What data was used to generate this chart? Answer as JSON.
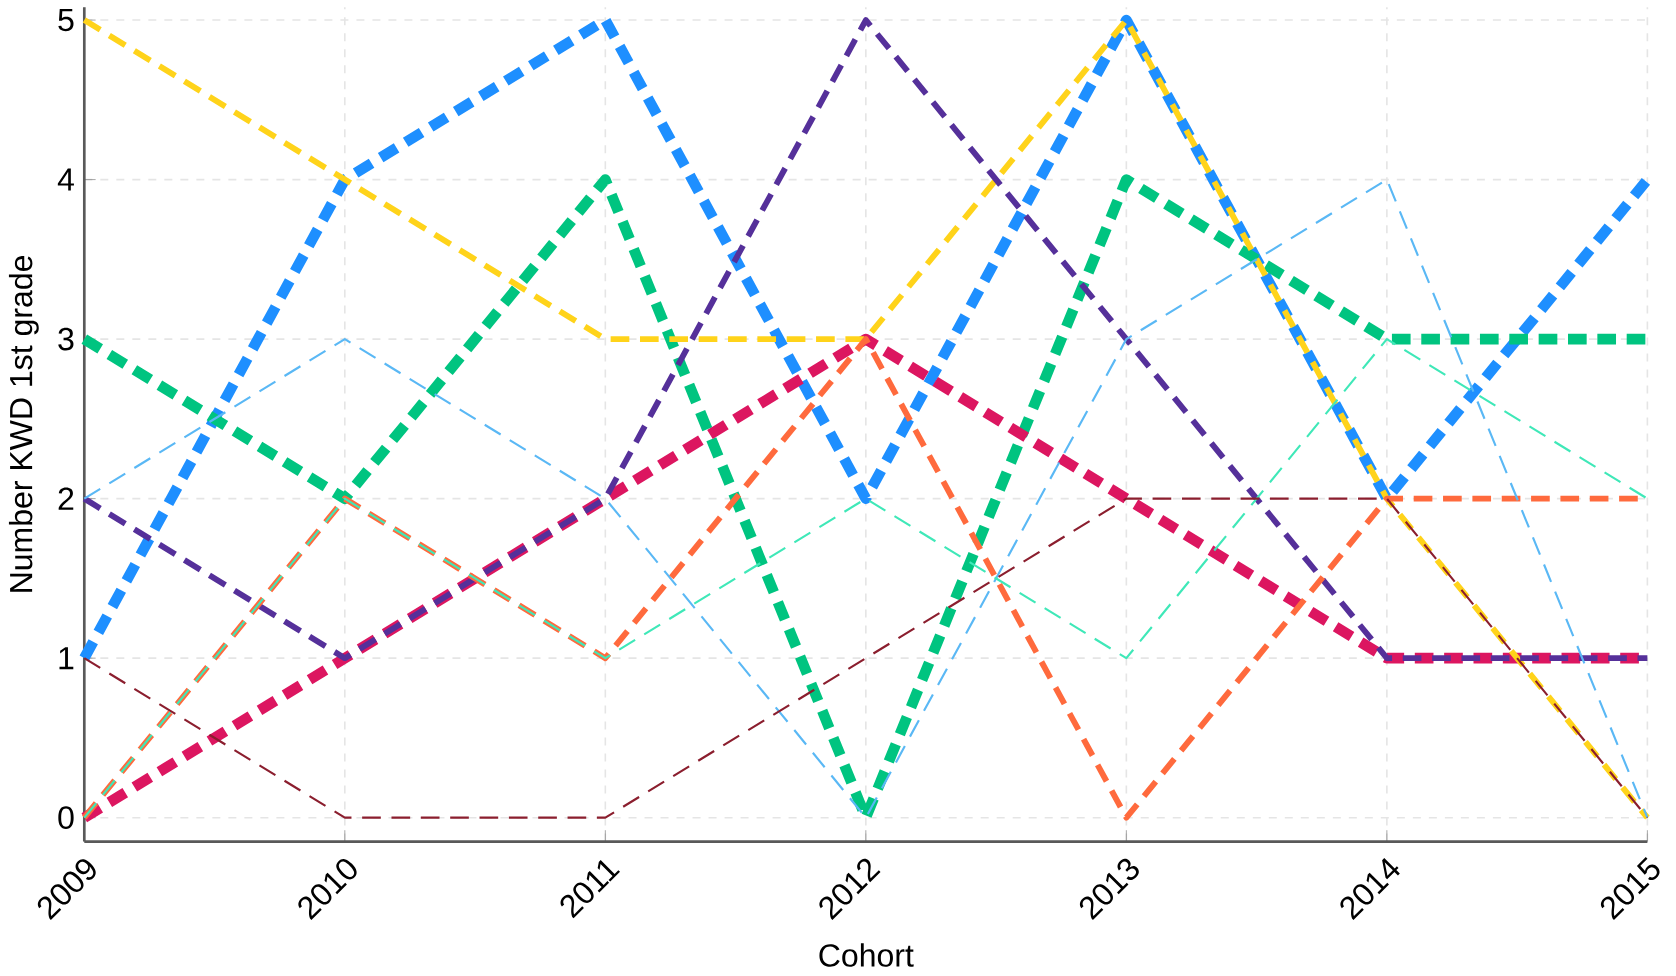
{
  "chart_data": {
    "type": "line",
    "xlabel": "Cohort",
    "ylabel": "Number KWD 1st grade",
    "x": [
      2009,
      2010,
      2011,
      2012,
      2013,
      2014,
      2015
    ],
    "xlim": [
      2009,
      2015
    ],
    "xticks": [
      2009,
      2010,
      2011,
      2012,
      2013,
      2014,
      2015
    ],
    "ylim": [
      -0.15,
      5.08
    ],
    "yticks": [
      0,
      1,
      2,
      3,
      4,
      5
    ],
    "grid": true,
    "line_style": "dashed",
    "marker": "none",
    "series": [
      {
        "color": "#1e8fff",
        "values": [
          1,
          4,
          5,
          2,
          5,
          2,
          4
        ]
      },
      {
        "color": "#00c480",
        "values": [
          3,
          2,
          4,
          0,
          4,
          3,
          3
        ]
      },
      {
        "color": "#dc1660",
        "values": [
          0,
          1,
          2,
          3,
          2,
          1,
          1
        ]
      },
      {
        "color": "#ffd31a",
        "values": [
          5,
          4,
          3,
          3,
          5,
          2,
          0
        ]
      },
      {
        "color": "#55309a",
        "values": [
          2,
          1,
          2,
          5,
          3,
          1,
          1
        ]
      },
      {
        "color": "#ff6a3d",
        "values": [
          0,
          2,
          1,
          3,
          0,
          2,
          2
        ]
      },
      {
        "color": "#5ab8f5",
        "values": [
          2,
          3,
          2,
          0,
          3,
          4,
          0
        ]
      },
      {
        "color": "#3fe8b8",
        "values": [
          0,
          2,
          1,
          2,
          1,
          3,
          2
        ]
      },
      {
        "color": "#8b1e2e",
        "values": [
          1,
          0,
          0,
          1,
          2,
          2,
          0
        ]
      }
    ]
  }
}
